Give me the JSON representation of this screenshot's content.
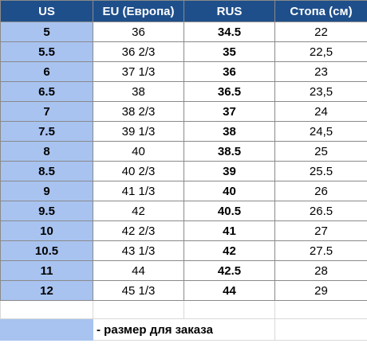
{
  "headers": [
    "US",
    "EU (Европа)",
    "RUS",
    "Стопа (см)"
  ],
  "rows": [
    {
      "us": "5",
      "eu": "36",
      "rus": "34.5",
      "foot": "22"
    },
    {
      "us": "5.5",
      "eu": "36 2/3",
      "rus": "35",
      "foot": "22,5"
    },
    {
      "us": "6",
      "eu": "37 1/3",
      "rus": "36",
      "foot": "23"
    },
    {
      "us": "6.5",
      "eu": "38",
      "rus": "36.5",
      "foot": "23,5"
    },
    {
      "us": "7",
      "eu": "38 2/3",
      "rus": "37",
      "foot": "24"
    },
    {
      "us": "7.5",
      "eu": "39 1/3",
      "rus": "38",
      "foot": "24,5"
    },
    {
      "us": "8",
      "eu": "40",
      "rus": "38.5",
      "foot": "25"
    },
    {
      "us": "8.5",
      "eu": "40 2/3",
      "rus": "39",
      "foot": "25.5"
    },
    {
      "us": "9",
      "eu": "41 1/3",
      "rus": "40",
      "foot": "26"
    },
    {
      "us": "9.5",
      "eu": "42",
      "rus": "40.5",
      "foot": "26.5"
    },
    {
      "us": "10",
      "eu": "42 2/3",
      "rus": "41",
      "foot": "27"
    },
    {
      "us": "10.5",
      "eu": "43 1/3",
      "rus": "42",
      "foot": "27.5"
    },
    {
      "us": "11",
      "eu": "44",
      "rus": "42.5",
      "foot": "28"
    },
    {
      "us": "12",
      "eu": "45 1/3",
      "rus": "44",
      "foot": "29"
    }
  ],
  "legend": {
    "text": "- размер для заказа"
  },
  "colors": {
    "header_bg": "#1f4f8b",
    "highlight": "#a8c3f0"
  }
}
